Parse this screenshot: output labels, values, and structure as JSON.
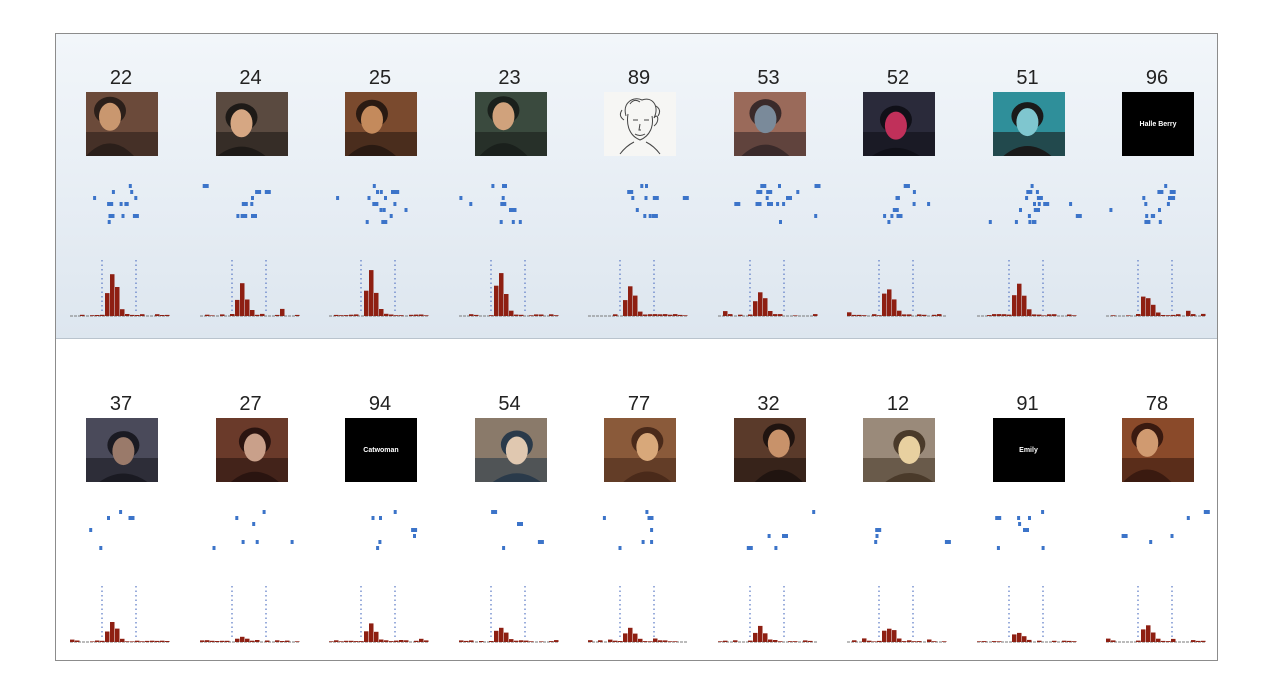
{
  "colors": {
    "raster": "#3c74c9",
    "bar": "#8e1f12",
    "axis": "#7a7a7a",
    "marker": "#5877c4"
  },
  "rows": [
    {
      "cells": [
        {
          "label": "22",
          "stimulus": {
            "kind": "photo",
            "palette": [
              "#6b4a3a",
              "#2b1f1a",
              "#c9976f"
            ]
          }
        },
        {
          "label": "24",
          "stimulus": {
            "kind": "photo",
            "palette": [
              "#5a4a40",
              "#1e1a17",
              "#d6a783"
            ]
          }
        },
        {
          "label": "25",
          "stimulus": {
            "kind": "photo",
            "palette": [
              "#7a4a2e",
              "#2a1a12",
              "#c48a5c"
            ]
          }
        },
        {
          "label": "23",
          "stimulus": {
            "kind": "photo",
            "palette": [
              "#3a4a3e",
              "#1a201c",
              "#d0a27c"
            ]
          }
        },
        {
          "label": "89",
          "stimulus": {
            "kind": "sketch"
          }
        },
        {
          "label": "53",
          "stimulus": {
            "kind": "photo",
            "palette": [
              "#9a6a5a",
              "#3a2a2a",
              "#7a8a9a"
            ]
          }
        },
        {
          "label": "52",
          "stimulus": {
            "kind": "photo",
            "palette": [
              "#2a2a3a",
              "#101018",
              "#c0305a"
            ]
          }
        },
        {
          "label": "51",
          "stimulus": {
            "kind": "photo",
            "palette": [
              "#2f8f9a",
              "#1a1a1a",
              "#7fc6cf"
            ]
          }
        },
        {
          "label": "96",
          "stimulus": {
            "kind": "text",
            "text": "Halle Berry"
          }
        }
      ]
    },
    {
      "cells": [
        {
          "label": "37",
          "stimulus": {
            "kind": "photo",
            "palette": [
              "#4a4a5a",
              "#1a1a22",
              "#9a7a6a"
            ]
          }
        },
        {
          "label": "27",
          "stimulus": {
            "kind": "photo",
            "palette": [
              "#6a3a2a",
              "#2a1410",
              "#c9a08a"
            ]
          }
        },
        {
          "label": "94",
          "stimulus": {
            "kind": "text",
            "text": "Catwoman"
          }
        },
        {
          "label": "54",
          "stimulus": {
            "kind": "photo",
            "palette": [
              "#8a7a6a",
              "#2a3a4a",
              "#e0c8b0"
            ]
          }
        },
        {
          "label": "77",
          "stimulus": {
            "kind": "photo",
            "palette": [
              "#8a5a3a",
              "#4a2a1a",
              "#d8a87a"
            ]
          }
        },
        {
          "label": "32",
          "stimulus": {
            "kind": "photo",
            "palette": [
              "#5a3a2a",
              "#201410",
              "#c8926a"
            ]
          }
        },
        {
          "label": "12",
          "stimulus": {
            "kind": "photo",
            "palette": [
              "#9a8a7a",
              "#4a3a2a",
              "#e8d0a0"
            ]
          }
        },
        {
          "label": "91",
          "stimulus": {
            "kind": "text",
            "text": "Emily"
          }
        },
        {
          "label": "78",
          "stimulus": {
            "kind": "photo",
            "palette": [
              "#8a4a2a",
              "#3a1a10",
              "#d09a70"
            ]
          }
        }
      ]
    }
  ]
}
